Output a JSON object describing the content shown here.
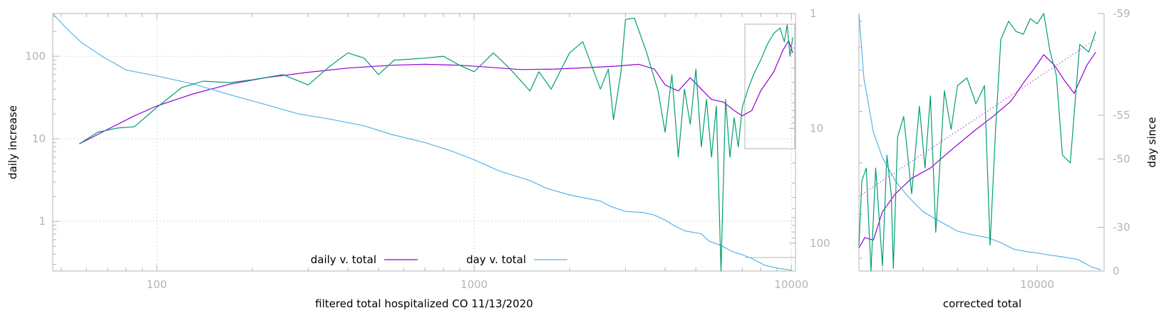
{
  "colors": {
    "daily": "#9400d3",
    "day": "#56b4e9",
    "raw": "#009e73",
    "fit": "#c040e0",
    "axis": "#b4b4b4",
    "grid": "#d8d8d8"
  },
  "chart_data": [
    {
      "type": "line",
      "title": "",
      "xlabel": "filtered total hospitalized CO 11/13/2020",
      "ylabel": "daily increase",
      "y2label": "",
      "xscale": "log",
      "yscale": "log",
      "y2scale": "log",
      "xlim": [
        47,
        10300
      ],
      "ylim": [
        0.25,
        330
      ],
      "y2lim": [
        1,
        175
      ],
      "x_ticks": [
        "100",
        "1000",
        "10000"
      ],
      "y_ticks": [
        "1",
        "10",
        "100"
      ],
      "y2_ticks": [
        "1",
        "10",
        "100"
      ],
      "grid": true,
      "legend": "bottom-center",
      "series": [
        {
          "name": "daily v. total",
          "color_key": "daily",
          "axis": "y",
          "x": [
            57,
            70,
            85,
            100,
            130,
            170,
            220,
            300,
            400,
            550,
            700,
            900,
            1100,
            1400,
            1800,
            2300,
            2800,
            3300,
            3700,
            4000,
            4400,
            4800,
            5200,
            5600,
            6100,
            6600,
            7000,
            7500,
            8000,
            8800,
            9400,
            9800,
            10100
          ],
          "y": [
            8.7,
            13,
            19,
            25,
            35,
            46,
            55,
            64,
            72,
            78,
            80,
            78,
            74,
            69,
            70,
            73,
            76,
            80,
            70,
            45,
            38,
            55,
            40,
            30,
            28,
            22,
            19,
            22,
            38,
            65,
            118,
            155,
            110
          ]
        },
        {
          "name": "day v. total",
          "color_key": "day",
          "axis": "y2",
          "x": [
            47,
            52,
            58,
            68,
            80,
            100,
            130,
            170,
            220,
            280,
            350,
            450,
            550,
            700,
            850,
            1000,
            1200,
            1500,
            1700,
            2000,
            2500,
            2700,
            3000,
            3400,
            3700,
            4000,
            4300,
            4600,
            5200,
            5500,
            6000,
            6500,
            7000,
            7500,
            8200,
            9000,
            10000
          ],
          "y": [
            1,
            1.35,
            1.8,
            2.4,
            3.1,
            3.5,
            4.1,
            5.1,
            6.2,
            7.5,
            8.3,
            9.5,
            11.3,
            13.3,
            15.8,
            18.8,
            23.5,
            28.5,
            33.5,
            38,
            43,
            48,
            53,
            54,
            57,
            63,
            71,
            78,
            83,
            96,
            105,
            118,
            126,
            136,
            155,
            165,
            172
          ]
        },
        {
          "name": "",
          "color_key": "raw",
          "axis": "y",
          "x": [
            57,
            65,
            75,
            85,
            100,
            120,
            140,
            170,
            200,
            250,
            300,
            350,
            400,
            450,
            500,
            560,
            620,
            700,
            800,
            900,
            1000,
            1150,
            1300,
            1500,
            1600,
            1750,
            1900,
            2000,
            2200,
            2500,
            2650,
            2750,
            2900,
            3000,
            3200,
            3500,
            3800,
            4000,
            4200,
            4400,
            4600,
            4800,
            5000,
            5200,
            5400,
            5600,
            5800,
            6000,
            6200,
            6400,
            6600,
            6800,
            7000,
            7300,
            7600,
            8000,
            8400,
            8800,
            9200,
            9500,
            9700,
            9900,
            10100
          ],
          "y": [
            8.7,
            12,
            13.5,
            14,
            24,
            42,
            50,
            48,
            52,
            60,
            45,
            75,
            110,
            95,
            60,
            90,
            92,
            95,
            100,
            78,
            65,
            110,
            70,
            38,
            65,
            40,
            75,
            110,
            150,
            40,
            70,
            17,
            63,
            280,
            290,
            110,
            38,
            12,
            60,
            6,
            40,
            15,
            70,
            8,
            30,
            6,
            25,
            0.2,
            30,
            6,
            18,
            8,
            24,
            40,
            60,
            90,
            140,
            190,
            220,
            150,
            240,
            100,
            170
          ]
        }
      ]
    },
    {
      "type": "line",
      "title": "",
      "xlabel": "corrected total",
      "ylabel": "",
      "y2label": "day since",
      "xscale": "log",
      "yscale": "symlog",
      "xlim": [
        4500,
        13500
      ],
      "x_ticks": [
        "10000"
      ],
      "y2_ticks": [
        "-59",
        "-55",
        "-50",
        "-30",
        "0"
      ],
      "grid": false,
      "legend": "none",
      "series": [
        {
          "name": "",
          "color_key": "daily",
          "axis": "y",
          "x": [
            4500,
            4620,
            4800,
            5000,
            5300,
            5700,
            6200,
            6800,
            7500,
            8200,
            8900,
            9400,
            9900,
            10300,
            10800,
            11300,
            11800,
            12500,
            13000
          ],
          "y": [
            0.09,
            0.13,
            0.12,
            0.23,
            0.3,
            0.36,
            0.4,
            0.47,
            0.54,
            0.6,
            0.66,
            0.73,
            0.79,
            0.84,
            0.8,
            0.74,
            0.69,
            0.8,
            0.85
          ]
        },
        {
          "name": "",
          "color_key": "day",
          "axis": "y2",
          "x": [
            4500,
            4600,
            4800,
            5000,
            5300,
            5600,
            6000,
            6500,
            7000,
            7500,
            8000,
            8500,
            9000,
            9500,
            10000,
            10500,
            11200,
            12000,
            12800,
            13300
          ],
          "y": [
            1,
            0.75,
            0.54,
            0.44,
            0.35,
            0.29,
            0.23,
            0.19,
            0.155,
            0.14,
            0.13,
            0.11,
            0.085,
            0.076,
            0.07,
            0.063,
            0.055,
            0.045,
            0.015,
            0.005
          ]
        },
        {
          "name": "",
          "color_key": "raw",
          "axis": "y",
          "x": [
            4500,
            4560,
            4650,
            4750,
            4850,
            5000,
            5100,
            5200,
            5250,
            5350,
            5500,
            5700,
            5900,
            6050,
            6200,
            6350,
            6600,
            6800,
            7000,
            7300,
            7600,
            7900,
            8100,
            8300,
            8500,
            8800,
            9100,
            9400,
            9700,
            10000,
            10300,
            10600,
            10900,
            11200,
            11600,
            12100,
            12600,
            13000
          ],
          "y": [
            0.1,
            0.35,
            0.4,
            0.0,
            0.4,
            0.02,
            0.45,
            0.3,
            0.01,
            0.52,
            0.6,
            0.3,
            0.64,
            0.4,
            0.68,
            0.15,
            0.7,
            0.55,
            0.72,
            0.75,
            0.65,
            0.72,
            0.1,
            0.55,
            0.9,
            0.97,
            0.93,
            0.92,
            0.98,
            0.96,
            1.0,
            0.85,
            0.76,
            0.45,
            0.42,
            0.88,
            0.85,
            0.93
          ]
        },
        {
          "name": "",
          "color_key": "fit",
          "axis": "y",
          "x": [
            4500,
            13000
          ],
          "y": [
            0.29,
            0.9
          ]
        }
      ]
    }
  ],
  "legend": [
    {
      "label": "daily v. total",
      "color_key": "daily"
    },
    {
      "label": "day v. total",
      "color_key": "day"
    }
  ]
}
